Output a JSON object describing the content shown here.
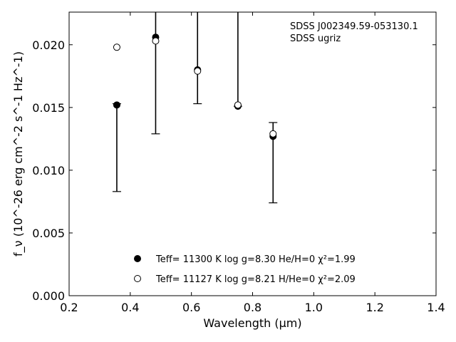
{
  "chart_data": {
    "type": "scatter",
    "title": "",
    "annotation": [
      "SDSS J002349.59-053130.1",
      "SDSS ugriz"
    ],
    "xlabel": "Wavelength (μm)",
    "ylabel": "f_ν (10^-26 erg cm^-2 s^-1 Hz^-1)",
    "xlim": [
      0.2,
      1.4
    ],
    "ylim": [
      0.0,
      0.0226
    ],
    "xticks": [
      "0.2",
      "0.4",
      "0.6",
      "0.8",
      "1.0",
      "1.2",
      "1.4"
    ],
    "yticks": [
      "0.000",
      "0.005",
      "0.010",
      "0.015",
      "0.020"
    ],
    "grid": false,
    "legend_position": "bottom-center",
    "observed": {
      "x": [
        0.356,
        0.483,
        0.62,
        0.752,
        0.867
      ],
      "y_low": [
        0.0083,
        0.0129,
        0.0153,
        0.0151,
        0.0074
      ],
      "y_high": [
        0.0153,
        0.0226,
        0.0226,
        0.0226,
        0.0138
      ]
    },
    "series": [
      {
        "name": "Teff= 11300 K  log g=8.30  He/H=0  χ²=1.99",
        "marker": "filled-circle",
        "x": [
          0.356,
          0.483,
          0.62,
          0.752,
          0.867
        ],
        "y": [
          0.0152,
          0.0206,
          0.018,
          0.0151,
          0.0127
        ]
      },
      {
        "name": "Teff= 11127 K  log g=8.21  H/He=0  χ²=2.09",
        "marker": "open-circle",
        "x": [
          0.356,
          0.483,
          0.62,
          0.752,
          0.867
        ],
        "y": [
          0.0198,
          0.0203,
          0.0179,
          0.0152,
          0.0129
        ]
      }
    ]
  }
}
